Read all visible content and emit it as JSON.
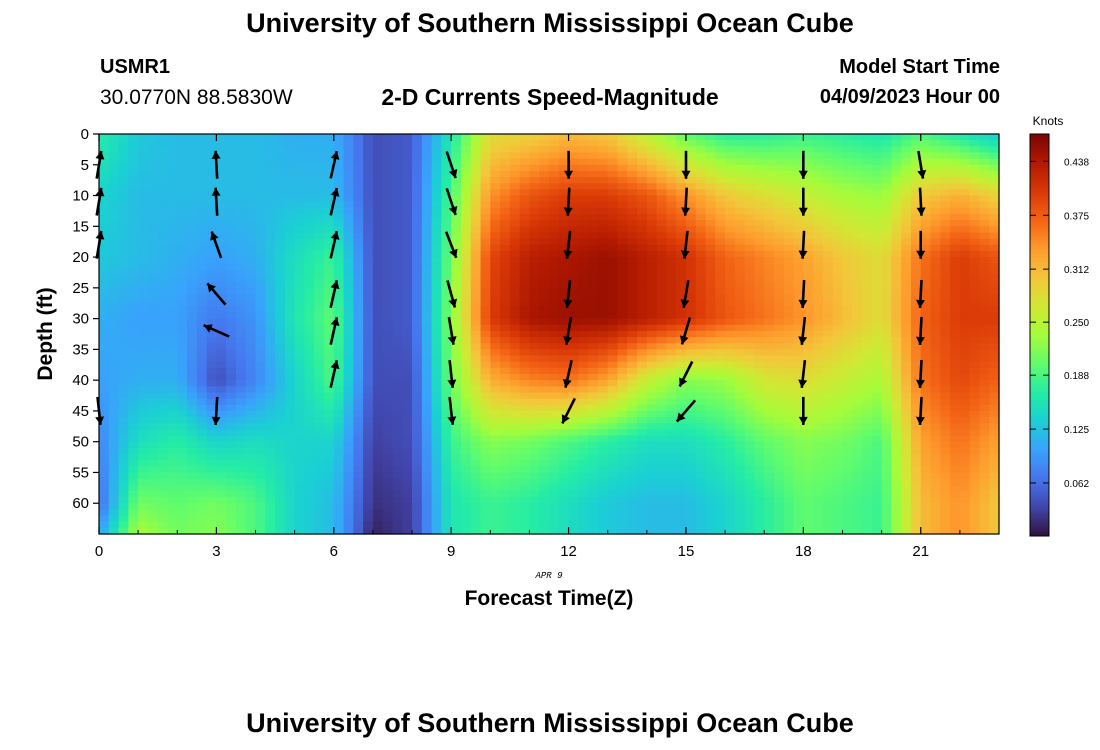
{
  "page": {
    "title_top": "University of Southern Mississippi Ocean Cube",
    "title_bottom": "University of Southern Mississippi Ocean Cube",
    "station_id": "USMR1",
    "station_coords": "30.0770N  88.5830W",
    "subtitle": "2-D Currents Speed-Magnitude",
    "model_start_label": "Model Start Time",
    "model_start_value": "04/09/2023 Hour 00"
  },
  "chart_data": {
    "type": "heatmap",
    "title": "2-D Currents Speed-Magnitude",
    "xlabel": "Forecast Time(Z)",
    "ylabel": "Depth (ft)",
    "x_sublabel": "APR 9",
    "colorbar_label": "Knots",
    "xlim": [
      0,
      23
    ],
    "ylim": [
      0,
      65
    ],
    "y_inverted": true,
    "x_ticks": [
      0,
      3,
      6,
      9,
      12,
      15,
      18,
      21
    ],
    "y_ticks": [
      0,
      5,
      10,
      15,
      20,
      25,
      30,
      35,
      40,
      45,
      50,
      55,
      60
    ],
    "colorbar_ticks": [
      "0.062",
      "0.125",
      "0.188",
      "0.250",
      "0.312",
      "0.375",
      "0.438"
    ],
    "color_range": [
      0,
      0.47
    ],
    "colormap": [
      "#30123b",
      "#4145ab",
      "#4675ed",
      "#39a2fc",
      "#1bcfd4",
      "#24eca6",
      "#61fc6c",
      "#a4fc3b",
      "#d1e834",
      "#f3c63a",
      "#fe9b2d",
      "#f36315",
      "#d93806",
      "#b11901",
      "#7a0402"
    ],
    "speed_grid_hours": [
      0,
      1,
      2,
      3,
      4,
      5,
      6,
      7,
      8,
      9,
      10,
      11,
      12,
      13,
      14,
      15,
      16,
      17,
      18,
      19,
      20,
      21,
      22,
      23
    ],
    "speed_grid_depths": [
      0,
      10,
      20,
      30,
      40,
      50,
      60,
      65
    ],
    "speed_grid": [
      [
        0.17,
        0.14,
        0.13,
        0.11,
        0.1,
        0.08,
        0.06,
        0.1
      ],
      [
        0.13,
        0.12,
        0.12,
        0.1,
        0.11,
        0.15,
        0.21,
        0.24
      ],
      [
        0.12,
        0.12,
        0.11,
        0.1,
        0.11,
        0.17,
        0.2,
        0.21
      ],
      [
        0.12,
        0.12,
        0.1,
        0.07,
        0.04,
        0.14,
        0.21,
        0.22
      ],
      [
        0.12,
        0.12,
        0.11,
        0.09,
        0.08,
        0.15,
        0.19,
        0.19
      ],
      [
        0.11,
        0.12,
        0.15,
        0.16,
        0.14,
        0.14,
        0.14,
        0.14
      ],
      [
        0.11,
        0.12,
        0.18,
        0.2,
        0.19,
        0.14,
        0.12,
        0.12
      ],
      [
        0.04,
        0.04,
        0.04,
        0.04,
        0.04,
        0.03,
        0.02,
        0.01
      ],
      [
        0.05,
        0.05,
        0.05,
        0.05,
        0.04,
        0.04,
        0.03,
        0.03
      ],
      [
        0.16,
        0.19,
        0.21,
        0.22,
        0.21,
        0.18,
        0.16,
        0.16
      ],
      [
        0.28,
        0.34,
        0.39,
        0.4,
        0.32,
        0.22,
        0.18,
        0.18
      ],
      [
        0.29,
        0.38,
        0.43,
        0.44,
        0.35,
        0.21,
        0.17,
        0.17
      ],
      [
        0.31,
        0.4,
        0.44,
        0.45,
        0.36,
        0.19,
        0.15,
        0.15
      ],
      [
        0.3,
        0.4,
        0.45,
        0.45,
        0.33,
        0.17,
        0.13,
        0.13
      ],
      [
        0.25,
        0.38,
        0.43,
        0.43,
        0.26,
        0.15,
        0.12,
        0.12
      ],
      [
        0.2,
        0.34,
        0.41,
        0.41,
        0.22,
        0.15,
        0.12,
        0.12
      ],
      [
        0.17,
        0.3,
        0.37,
        0.38,
        0.23,
        0.17,
        0.14,
        0.14
      ],
      [
        0.17,
        0.28,
        0.35,
        0.36,
        0.27,
        0.2,
        0.17,
        0.17
      ],
      [
        0.18,
        0.26,
        0.33,
        0.34,
        0.28,
        0.22,
        0.2,
        0.2
      ],
      [
        0.17,
        0.24,
        0.3,
        0.31,
        0.26,
        0.21,
        0.19,
        0.19
      ],
      [
        0.16,
        0.23,
        0.28,
        0.28,
        0.24,
        0.19,
        0.18,
        0.18
      ],
      [
        0.19,
        0.3,
        0.36,
        0.37,
        0.36,
        0.33,
        0.31,
        0.31
      ],
      [
        0.16,
        0.32,
        0.4,
        0.4,
        0.39,
        0.36,
        0.34,
        0.34
      ],
      [
        0.13,
        0.29,
        0.38,
        0.4,
        0.37,
        0.33,
        0.3,
        0.3
      ]
    ],
    "vector_hours": [
      0,
      3,
      6,
      9,
      12,
      15,
      18,
      21
    ],
    "vector_depths": [
      5,
      11,
      18,
      26,
      32,
      39,
      45
    ],
    "vectors": [
      [
        {
          "u": 0.15,
          "v": 0.9
        },
        {
          "u": 0.15,
          "v": 0.9
        },
        {
          "u": 0.15,
          "v": 0.9
        },
        null,
        null,
        null,
        {
          "u": 0.1,
          "v": -0.9
        }
      ],
      [
        {
          "u": -0.05,
          "v": 0.9
        },
        {
          "u": -0.05,
          "v": 0.9
        },
        {
          "u": -0.3,
          "v": 0.85
        },
        {
          "u": -0.6,
          "v": 0.7
        },
        {
          "u": -0.9,
          "v": 0.4
        },
        null,
        {
          "u": -0.05,
          "v": -0.9
        }
      ],
      [
        {
          "u": 0.2,
          "v": 0.9
        },
        {
          "u": 0.2,
          "v": 0.9
        },
        {
          "u": 0.2,
          "v": 0.9
        },
        {
          "u": 0.2,
          "v": 0.9
        },
        {
          "u": 0.2,
          "v": 0.9
        },
        {
          "u": 0.2,
          "v": 0.9
        },
        null
      ],
      [
        {
          "u": 0.3,
          "v": -0.9
        },
        {
          "u": 0.3,
          "v": -0.9
        },
        {
          "u": 0.35,
          "v": -0.9
        },
        {
          "u": 0.25,
          "v": -0.9
        },
        {
          "u": 0.15,
          "v": -0.9
        },
        {
          "u": 0.1,
          "v": -0.9
        },
        {
          "u": 0.1,
          "v": -0.9
        }
      ],
      [
        {
          "u": 0.0,
          "v": -0.9
        },
        {
          "u": -0.05,
          "v": -0.9
        },
        {
          "u": -0.1,
          "v": -0.9
        },
        {
          "u": -0.1,
          "v": -0.9
        },
        {
          "u": -0.15,
          "v": -0.9
        },
        {
          "u": -0.2,
          "v": -0.9
        },
        {
          "u": -0.4,
          "v": -0.8
        }
      ],
      [
        {
          "u": 0.0,
          "v": -0.9
        },
        {
          "u": -0.05,
          "v": -0.9
        },
        {
          "u": -0.1,
          "v": -0.9
        },
        {
          "u": -0.15,
          "v": -0.9
        },
        {
          "u": -0.25,
          "v": -0.85
        },
        {
          "u": -0.4,
          "v": -0.8
        },
        {
          "u": -0.6,
          "v": -0.7
        }
      ],
      [
        {
          "u": 0.0,
          "v": -0.9
        },
        {
          "u": 0.0,
          "v": -0.9
        },
        {
          "u": -0.05,
          "v": -0.9
        },
        {
          "u": -0.05,
          "v": -0.9
        },
        {
          "u": -0.1,
          "v": -0.9
        },
        {
          "u": -0.1,
          "v": -0.9
        },
        {
          "u": 0.0,
          "v": -0.9
        }
      ],
      [
        {
          "u": 0.15,
          "v": -0.9
        },
        {
          "u": 0.05,
          "v": -0.9
        },
        {
          "u": 0.0,
          "v": -0.9
        },
        {
          "u": -0.05,
          "v": -0.9
        },
        {
          "u": -0.05,
          "v": -0.9
        },
        {
          "u": -0.05,
          "v": -0.9
        },
        {
          "u": -0.05,
          "v": -0.9
        }
      ]
    ]
  }
}
